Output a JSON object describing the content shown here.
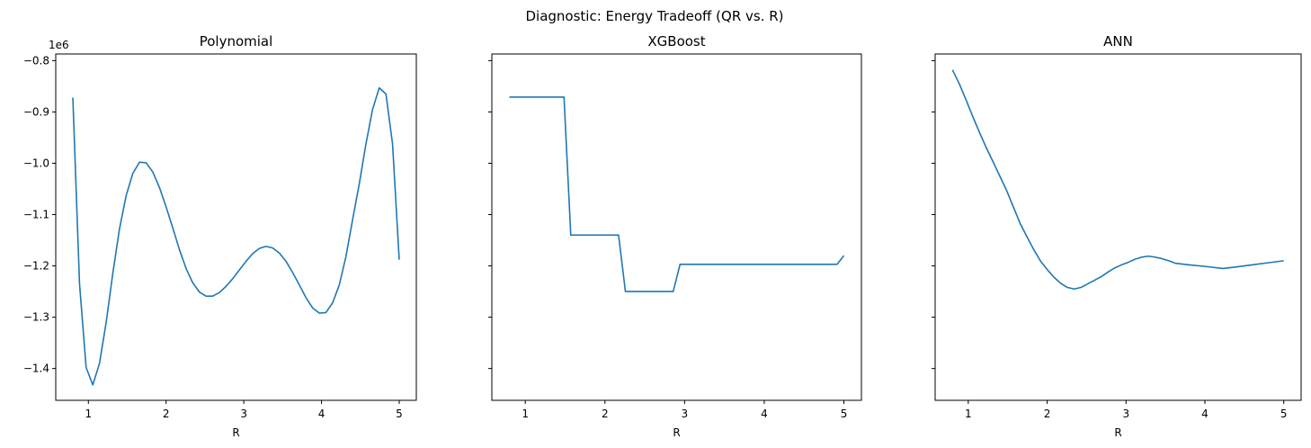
{
  "figure": {
    "suptitle": "Diagnostic: Energy Tradeoff (QR vs. R)",
    "line_color": "#1f77b4",
    "sharey": true
  },
  "chart_data": [
    {
      "type": "line",
      "title": "Polynomial",
      "xlabel": "R",
      "ylabel": "",
      "y_offset_label": "1e6",
      "xlim": [
        0.58,
        5.22
      ],
      "ylim": [
        -1.462,
        -0.787
      ],
      "y_scale_note": "values in units of 1e6",
      "xticks": [
        1,
        2,
        3,
        4,
        5
      ],
      "yticks": [
        -1.4,
        -1.3,
        -1.2,
        -1.1,
        -1.0,
        -0.9,
        -0.8
      ],
      "ytick_labels": [
        "−1.4",
        "−1.3",
        "−1.2",
        "−1.1",
        "−1.0",
        "−0.9",
        "−0.8"
      ],
      "series": [
        {
          "x": [
            0.8,
            0.886,
            0.971,
            1.057,
            1.143,
            1.229,
            1.314,
            1.4,
            1.486,
            1.571,
            1.657,
            1.743,
            1.829,
            1.914,
            2.0,
            2.086,
            2.171,
            2.257,
            2.343,
            2.429,
            2.514,
            2.6,
            2.686,
            2.771,
            2.857,
            2.943,
            3.029,
            3.114,
            3.2,
            3.286,
            3.371,
            3.457,
            3.543,
            3.629,
            3.714,
            3.8,
            3.886,
            3.971,
            4.057,
            4.143,
            4.229,
            4.314,
            4.4,
            4.486,
            4.571,
            4.657,
            4.743,
            4.829,
            4.914,
            5.0
          ],
          "y": [
            -0.872,
            -1.235,
            -1.398,
            -1.432,
            -1.39,
            -1.31,
            -1.215,
            -1.128,
            -1.063,
            -1.02,
            -0.998,
            -0.999,
            -1.017,
            -1.047,
            -1.085,
            -1.126,
            -1.168,
            -1.205,
            -1.233,
            -1.251,
            -1.259,
            -1.259,
            -1.252,
            -1.24,
            -1.225,
            -1.208,
            -1.191,
            -1.176,
            -1.166,
            -1.162,
            -1.165,
            -1.175,
            -1.191,
            -1.213,
            -1.237,
            -1.262,
            -1.282,
            -1.292,
            -1.291,
            -1.272,
            -1.237,
            -1.182,
            -1.11,
            -1.04,
            -0.963,
            -0.895,
            -0.853,
            -0.865,
            -0.962,
            -1.188
          ]
        }
      ]
    },
    {
      "type": "line",
      "title": "XGBoost",
      "xlabel": "R",
      "ylabel": "",
      "xlim": [
        0.58,
        5.22
      ],
      "ylim": [
        -1.462,
        -0.787
      ],
      "xticks": [
        1,
        2,
        3,
        4,
        5
      ],
      "series": [
        {
          "x": [
            0.8,
            1.486,
            1.571,
            2.171,
            2.257,
            2.857,
            2.943,
            4.914,
            5.0
          ],
          "y": [
            -0.871,
            -0.871,
            -1.14,
            -1.14,
            -1.25,
            -1.25,
            -1.197,
            -1.197,
            -1.18
          ]
        }
      ]
    },
    {
      "type": "line",
      "title": "ANN",
      "xlabel": "R",
      "ylabel": "",
      "xlim": [
        0.58,
        5.22
      ],
      "ylim": [
        -1.462,
        -0.787
      ],
      "xticks": [
        1,
        2,
        3,
        4,
        5
      ],
      "series": [
        {
          "x": [
            0.8,
            0.886,
            0.971,
            1.057,
            1.143,
            1.229,
            1.314,
            1.4,
            1.486,
            1.571,
            1.657,
            1.743,
            1.829,
            1.914,
            2.0,
            2.086,
            2.171,
            2.257,
            2.343,
            2.429,
            2.514,
            2.6,
            2.686,
            2.771,
            2.857,
            2.943,
            3.029,
            3.114,
            3.2,
            3.286,
            3.371,
            3.457,
            3.543,
            3.629,
            3.8,
            4.0,
            4.229,
            4.4,
            4.6,
            4.8,
            5.0
          ],
          "y": [
            -0.818,
            -0.845,
            -0.876,
            -0.909,
            -0.94,
            -0.97,
            -0.997,
            -1.025,
            -1.053,
            -1.085,
            -1.117,
            -1.143,
            -1.168,
            -1.19,
            -1.207,
            -1.222,
            -1.234,
            -1.242,
            -1.245,
            -1.242,
            -1.235,
            -1.228,
            -1.221,
            -1.212,
            -1.204,
            -1.198,
            -1.193,
            -1.187,
            -1.183,
            -1.181,
            -1.183,
            -1.186,
            -1.19,
            -1.195,
            -1.198,
            -1.201,
            -1.205,
            -1.202,
            -1.198,
            -1.194,
            -1.19
          ]
        }
      ]
    }
  ]
}
